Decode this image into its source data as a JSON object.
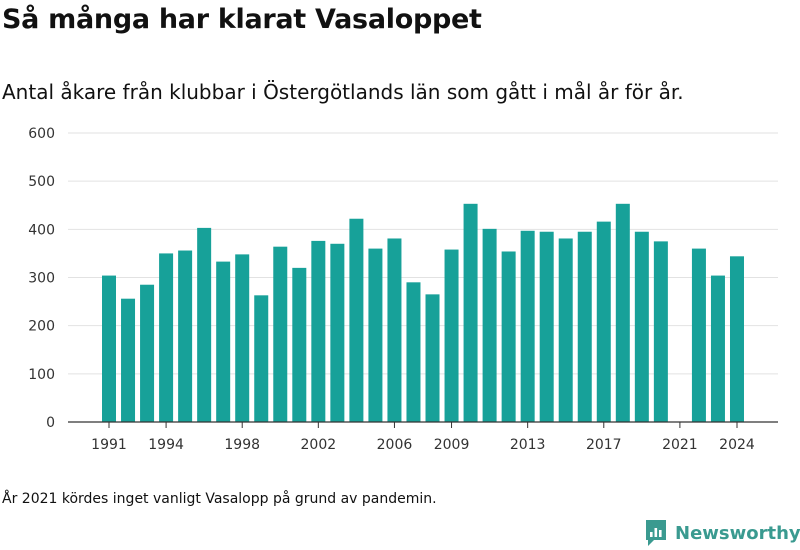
{
  "header": {
    "title": "Så många har klarat Vasaloppet",
    "subtitle": "Antal åkare från klubbar i Östergötlands län som gått i mål år för år."
  },
  "footer": {
    "footnote": "År 2021 kördes inget vanligt Vasalopp på grund av pandemin.",
    "brand": "Newsworthy",
    "brand_icon": "newsworthy-logo-icon"
  },
  "colors": {
    "bar": "#17a199",
    "grid": "#e2e2e2",
    "axis": "#333333",
    "brand": "#3a9a90"
  },
  "chart_data": {
    "type": "bar",
    "title": "Så många har klarat Vasaloppet",
    "subtitle": "Antal åkare från klubbar i Östergötlands län som gått i mål år för år.",
    "xlabel": "",
    "ylabel": "",
    "x": [
      1991,
      1992,
      1993,
      1994,
      1995,
      1996,
      1997,
      1998,
      1999,
      2000,
      2001,
      2002,
      2003,
      2004,
      2005,
      2006,
      2007,
      2008,
      2009,
      2010,
      2011,
      2012,
      2013,
      2014,
      2015,
      2016,
      2017,
      2018,
      2019,
      2020,
      2021,
      2022,
      2023,
      2024
    ],
    "values": [
      304,
      256,
      285,
      350,
      356,
      403,
      333,
      348,
      263,
      364,
      320,
      376,
      370,
      422,
      360,
      381,
      290,
      265,
      358,
      453,
      401,
      354,
      397,
      395,
      381,
      395,
      416,
      453,
      395,
      375,
      null,
      360,
      304,
      344
    ],
    "xticks": [
      "1991",
      "1994",
      "1998",
      "2002",
      "2006",
      "2009",
      "2013",
      "2017",
      "2021",
      "2024"
    ],
    "yticks": [
      0,
      100,
      200,
      300,
      400,
      500,
      600
    ],
    "ylim": [
      0,
      600
    ],
    "grid": true,
    "legend": "none"
  }
}
